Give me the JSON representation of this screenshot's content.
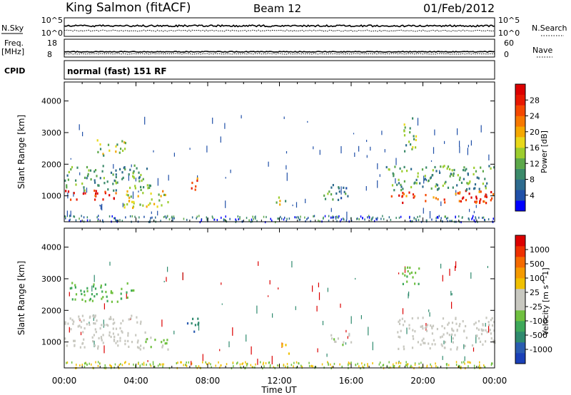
{
  "header": {
    "station": "King Salmon (fitACF)",
    "beam": "Beam 12",
    "date": "01/Feb/2012"
  },
  "panels": {
    "nsky_label": "N.Sky",
    "nsky_ticks": [
      "10^5",
      "10^0"
    ],
    "nsearch_label": "N.Search",
    "nsearch_ticks": [
      "10^5",
      "10^0"
    ],
    "freq_label": "Freq.",
    "freq_unit": "[MHz]",
    "freq_ticks": [
      "18",
      "8"
    ],
    "nave_label": "Nave",
    "nave_ticks": [
      "60",
      "0"
    ],
    "cpid_label": "CPID",
    "cpid_text": "normal (fast) 151 RF"
  },
  "colorbars": {
    "power": {
      "label": "Power [dB]",
      "ticks": [
        "28",
        "24",
        "20",
        "16",
        "12",
        "8",
        "4"
      ],
      "colors": [
        "#0000ff",
        "#2050a8",
        "#2e6b8e",
        "#3b8a6a",
        "#5ca84a",
        "#9ccd2e",
        "#e8d81a",
        "#f5a800",
        "#f77800",
        "#f54800",
        "#e81800",
        "#dc0000"
      ]
    },
    "velocity": {
      "label": "Velocity [m s^-1]",
      "ticks": [
        "1000",
        "500",
        "100",
        "25",
        "-25",
        "-100",
        "-500",
        "-1000"
      ],
      "colors": [
        "#1a40b8",
        "#2a5cb0",
        "#2f8a6e",
        "#3ea85a",
        "#70c040",
        "#c8c8c0",
        "#c8c8c0",
        "#f0c000",
        "#f59a00",
        "#f56a00",
        "#ee3000",
        "#dc0000"
      ]
    }
  },
  "chart_data": [
    {
      "type": "heatmap",
      "title": "Power",
      "ylabel": "Slant Range [km]",
      "ylim": [
        180,
        4600
      ],
      "yticks": [
        1000,
        2000,
        3000,
        4000
      ],
      "xlim": [
        0,
        24
      ],
      "colorbar_range": [
        0,
        30
      ],
      "regions": [
        {
          "t": [
            0.0,
            3.2
          ],
          "r": [
            900,
            1200
          ],
          "level": 27
        },
        {
          "t": [
            0.0,
            4.8
          ],
          "r": [
            1200,
            2000
          ],
          "level": 10
        },
        {
          "t": [
            1.8,
            3.4
          ],
          "r": [
            2300,
            2800
          ],
          "level": 14
        },
        {
          "t": [
            3.0,
            5.8
          ],
          "r": [
            650,
            1200
          ],
          "level": 16
        },
        {
          "t": [
            6.8,
            7.4
          ],
          "r": [
            1200,
            1650
          ],
          "level": 22
        },
        {
          "t": [
            11.8,
            12.4
          ],
          "r": [
            650,
            1000
          ],
          "level": 14
        },
        {
          "t": [
            14.4,
            15.8
          ],
          "r": [
            800,
            1400
          ],
          "level": 8
        },
        {
          "t": [
            18.2,
            24.0
          ],
          "r": [
            800,
            1200
          ],
          "level": 24
        },
        {
          "t": [
            17.8,
            24.0
          ],
          "r": [
            1200,
            2000
          ],
          "level": 10
        },
        {
          "t": [
            18.8,
            19.6
          ],
          "r": [
            2400,
            3500
          ],
          "level": 12
        }
      ]
    },
    {
      "type": "heatmap",
      "title": "Velocity",
      "ylabel": "Slant Range [km]",
      "xlabel": "Time UT",
      "ylim": [
        180,
        4600
      ],
      "yticks": [
        1000,
        2000,
        3000,
        4000
      ],
      "xlim": [
        0,
        24
      ],
      "xticks": [
        "00:00",
        "04:00",
        "08:00",
        "12:00",
        "16:00",
        "20:00",
        "00:00"
      ],
      "colorbar_range": [
        -1000,
        1000
      ],
      "regions": [
        {
          "t": [
            0.0,
            4.5
          ],
          "r": [
            800,
            1900
          ],
          "level": 0
        },
        {
          "t": [
            0.3,
            4.0
          ],
          "r": [
            2300,
            2900
          ],
          "level": -300
        },
        {
          "t": [
            4.5,
            5.8
          ],
          "r": [
            700,
            1200
          ],
          "level": -200
        },
        {
          "t": [
            6.8,
            7.5
          ],
          "r": [
            1300,
            1800
          ],
          "level": -600
        },
        {
          "t": [
            12.0,
            12.5
          ],
          "r": [
            650,
            1000
          ],
          "level": 300
        },
        {
          "t": [
            14.8,
            16.0
          ],
          "r": [
            900,
            1300
          ],
          "level": -100
        },
        {
          "t": [
            18.5,
            24.0
          ],
          "r": [
            800,
            1800
          ],
          "level": 0
        },
        {
          "t": [
            18.8,
            19.8
          ],
          "r": [
            2800,
            3500
          ],
          "level": -300
        }
      ]
    }
  ],
  "time_axis": {
    "label": "Time UT",
    "ticks": [
      "00:00",
      "04:00",
      "08:00",
      "12:00",
      "16:00",
      "20:00",
      "00:00"
    ]
  }
}
